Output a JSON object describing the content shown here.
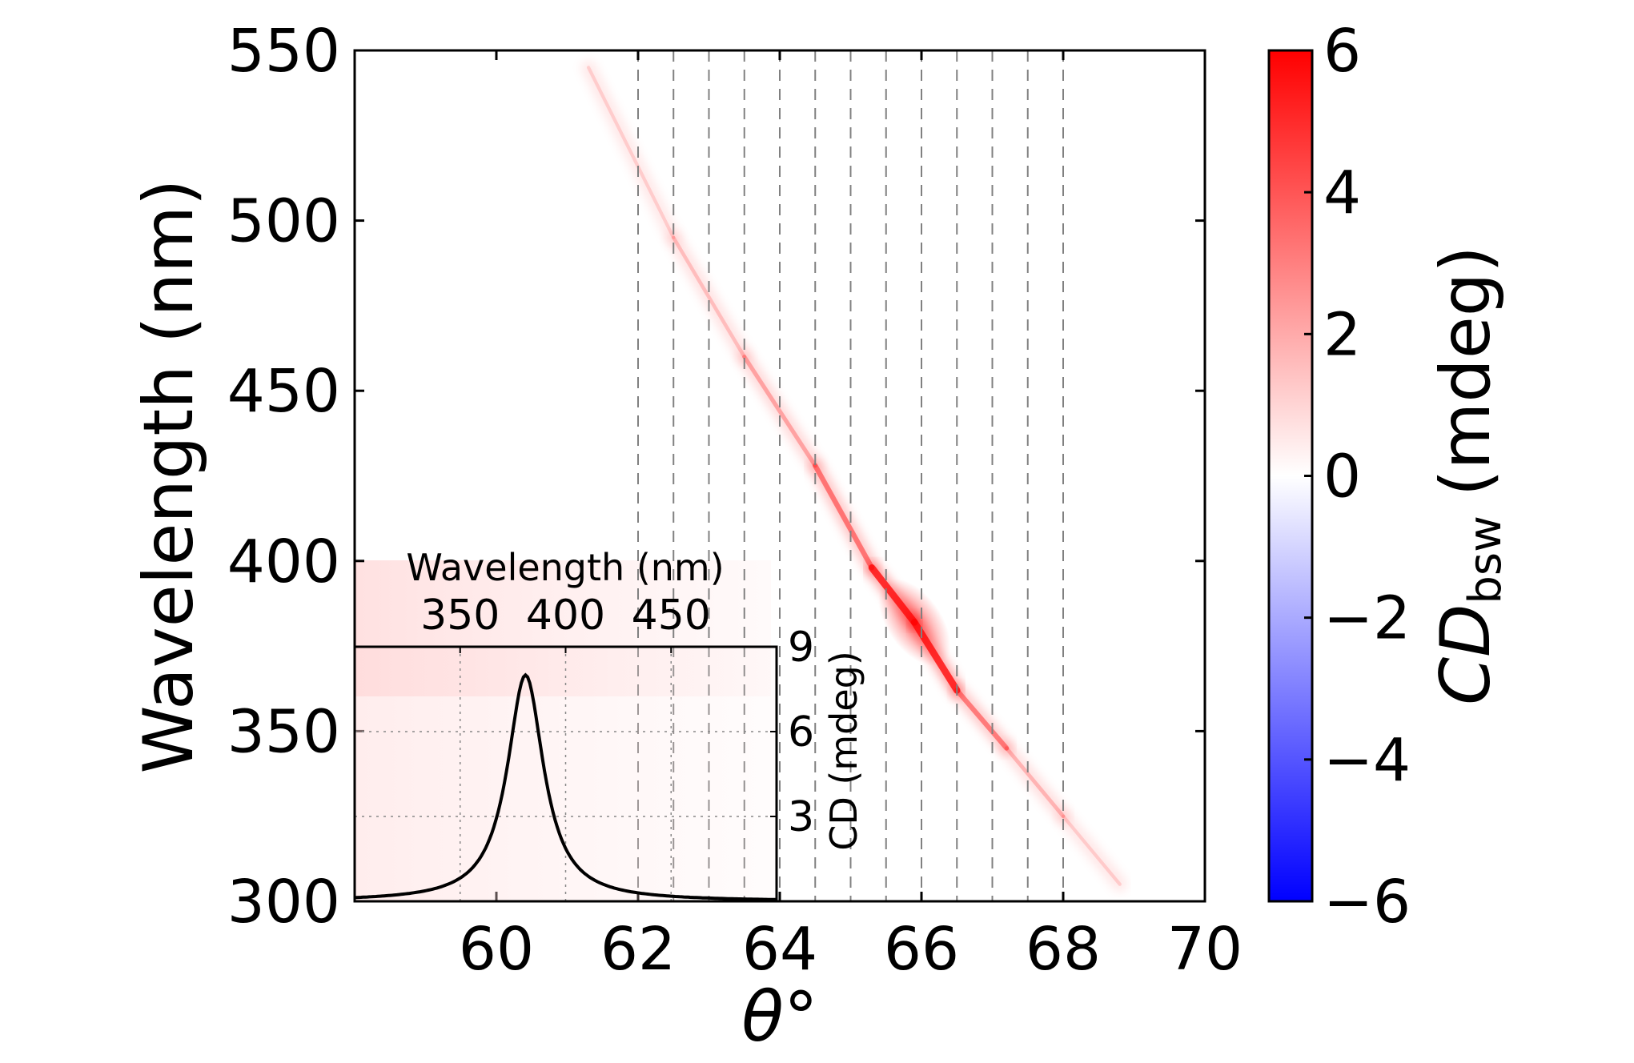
{
  "chart_data": {
    "type": "heatmap",
    "ylabel": "Wavelength (nm)",
    "xlabel_symbol": "θ",
    "xlabel_unit": "°",
    "xlim": [
      58,
      70
    ],
    "ylim": [
      300,
      550
    ],
    "x_ticks": [
      "60",
      "62",
      "64",
      "66",
      "68",
      "70"
    ],
    "x_tick_values": [
      60,
      62,
      64,
      66,
      68,
      70
    ],
    "y_ticks": [
      "300",
      "350",
      "400",
      "450",
      "500",
      "550"
    ],
    "y_tick_values": [
      300,
      350,
      400,
      450,
      500,
      550
    ],
    "vertical_dashed_lines_theta": [
      62.0,
      62.5,
      63.0,
      63.5,
      64.0,
      64.5,
      65.0,
      65.5,
      66.0,
      66.5,
      67.0,
      67.5,
      68.0
    ],
    "resonance_band": [
      {
        "theta": 61.3,
        "wavelength": 545,
        "cd": 0.1
      },
      {
        "theta": 62.5,
        "wavelength": 495,
        "cd": 0.3
      },
      {
        "theta": 63.5,
        "wavelength": 460,
        "cd": 0.8
      },
      {
        "theta": 64.5,
        "wavelength": 428,
        "cd": 1.6
      },
      {
        "theta": 65.3,
        "wavelength": 398,
        "cd": 3.2
      },
      {
        "theta": 65.9,
        "wavelength": 382,
        "cd": 6.0
      },
      {
        "theta": 66.5,
        "wavelength": 362,
        "cd": 3.2
      },
      {
        "theta": 67.2,
        "wavelength": 345,
        "cd": 1.2
      },
      {
        "theta": 68.0,
        "wavelength": 325,
        "cd": 0.4
      },
      {
        "theta": 68.8,
        "wavelength": 305,
        "cd": 0.1
      }
    ],
    "colorbar": {
      "label_main": "CD",
      "label_sub": "bsw",
      "label_unit": "(mdeg)",
      "range": [
        -6,
        6
      ],
      "ticks": [
        "6",
        "4",
        "2",
        "0",
        "−2",
        "−4",
        "−6"
      ],
      "tick_values": [
        6,
        4,
        2,
        0,
        -2,
        -4,
        -6
      ],
      "color_low": "#0000ff",
      "color_mid": "#ffffff",
      "color_high": "#ff0000"
    },
    "inset": {
      "type": "line",
      "xlabel": "Wavelength (nm)",
      "x_ticks": [
        "350",
        "400",
        "450"
      ],
      "x_tick_values": [
        350,
        400,
        450
      ],
      "xlim": [
        300,
        500
      ],
      "ylabel": "CD  (mdeg)",
      "y_ticks": [
        "3",
        "6",
        "9"
      ],
      "y_tick_values": [
        3,
        6,
        9
      ],
      "ylim": [
        0,
        9
      ],
      "peak_wavelength": 381,
      "peak_value": 8.0,
      "half_width": 10.5,
      "line_color": "#000000",
      "grid": true
    }
  }
}
